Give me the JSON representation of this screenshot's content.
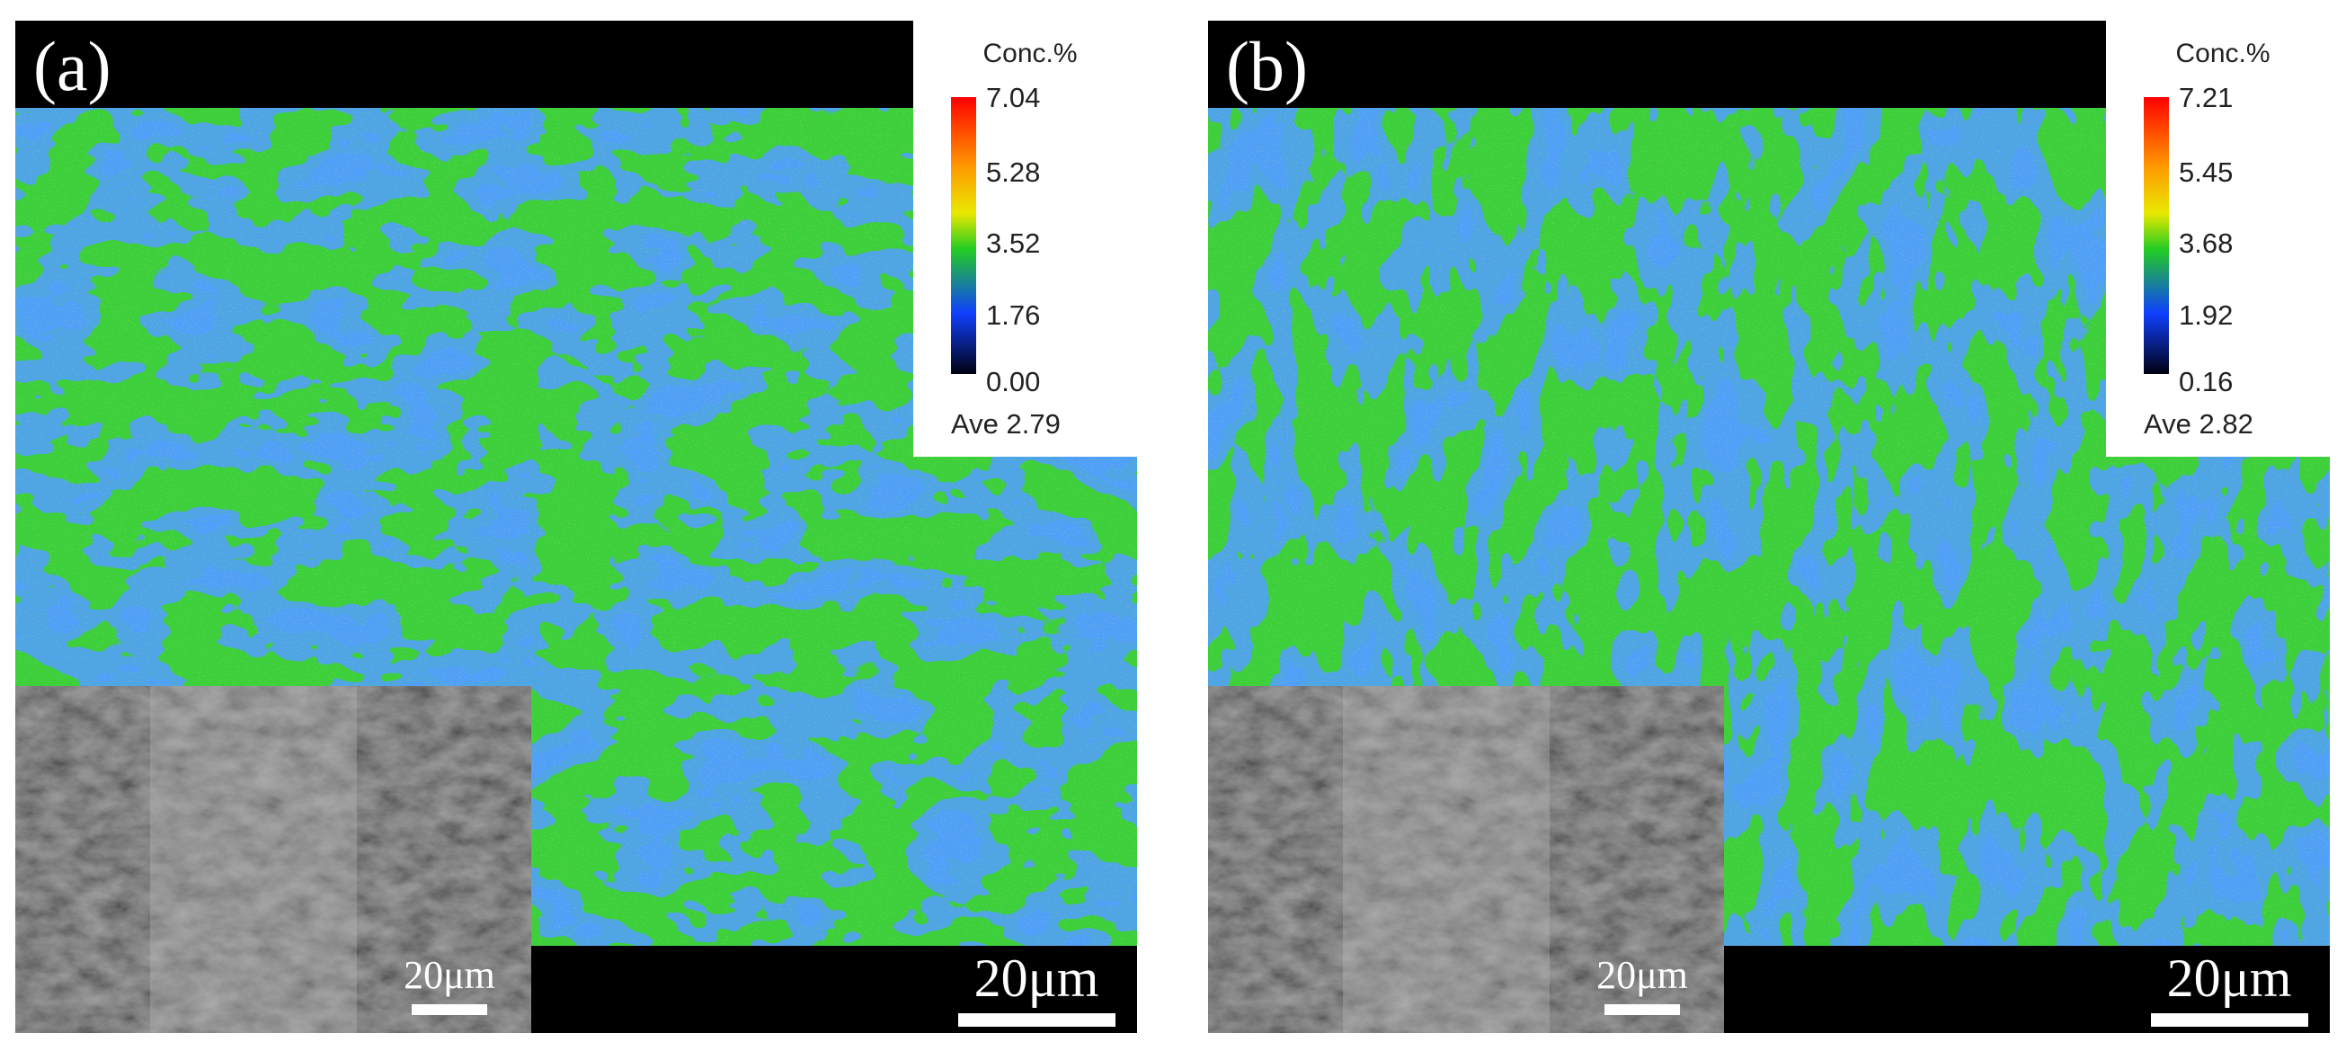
{
  "panels": [
    {
      "label": "(a)",
      "legend": {
        "title": "Conc.%",
        "ticks": [
          "7.04",
          "5.28",
          "3.52",
          "1.76",
          "0.00"
        ],
        "average": "Ave 2.79"
      },
      "scale_bar": "20μm",
      "inset_scale_bar": "20μm"
    },
    {
      "label": "(b)",
      "legend": {
        "title": "Conc.%",
        "ticks": [
          "7.21",
          "5.45",
          "3.68",
          "1.92",
          "0.16"
        ],
        "average": "Ave 2.82"
      },
      "scale_bar": "20μm",
      "inset_scale_bar": "20μm"
    }
  ]
}
